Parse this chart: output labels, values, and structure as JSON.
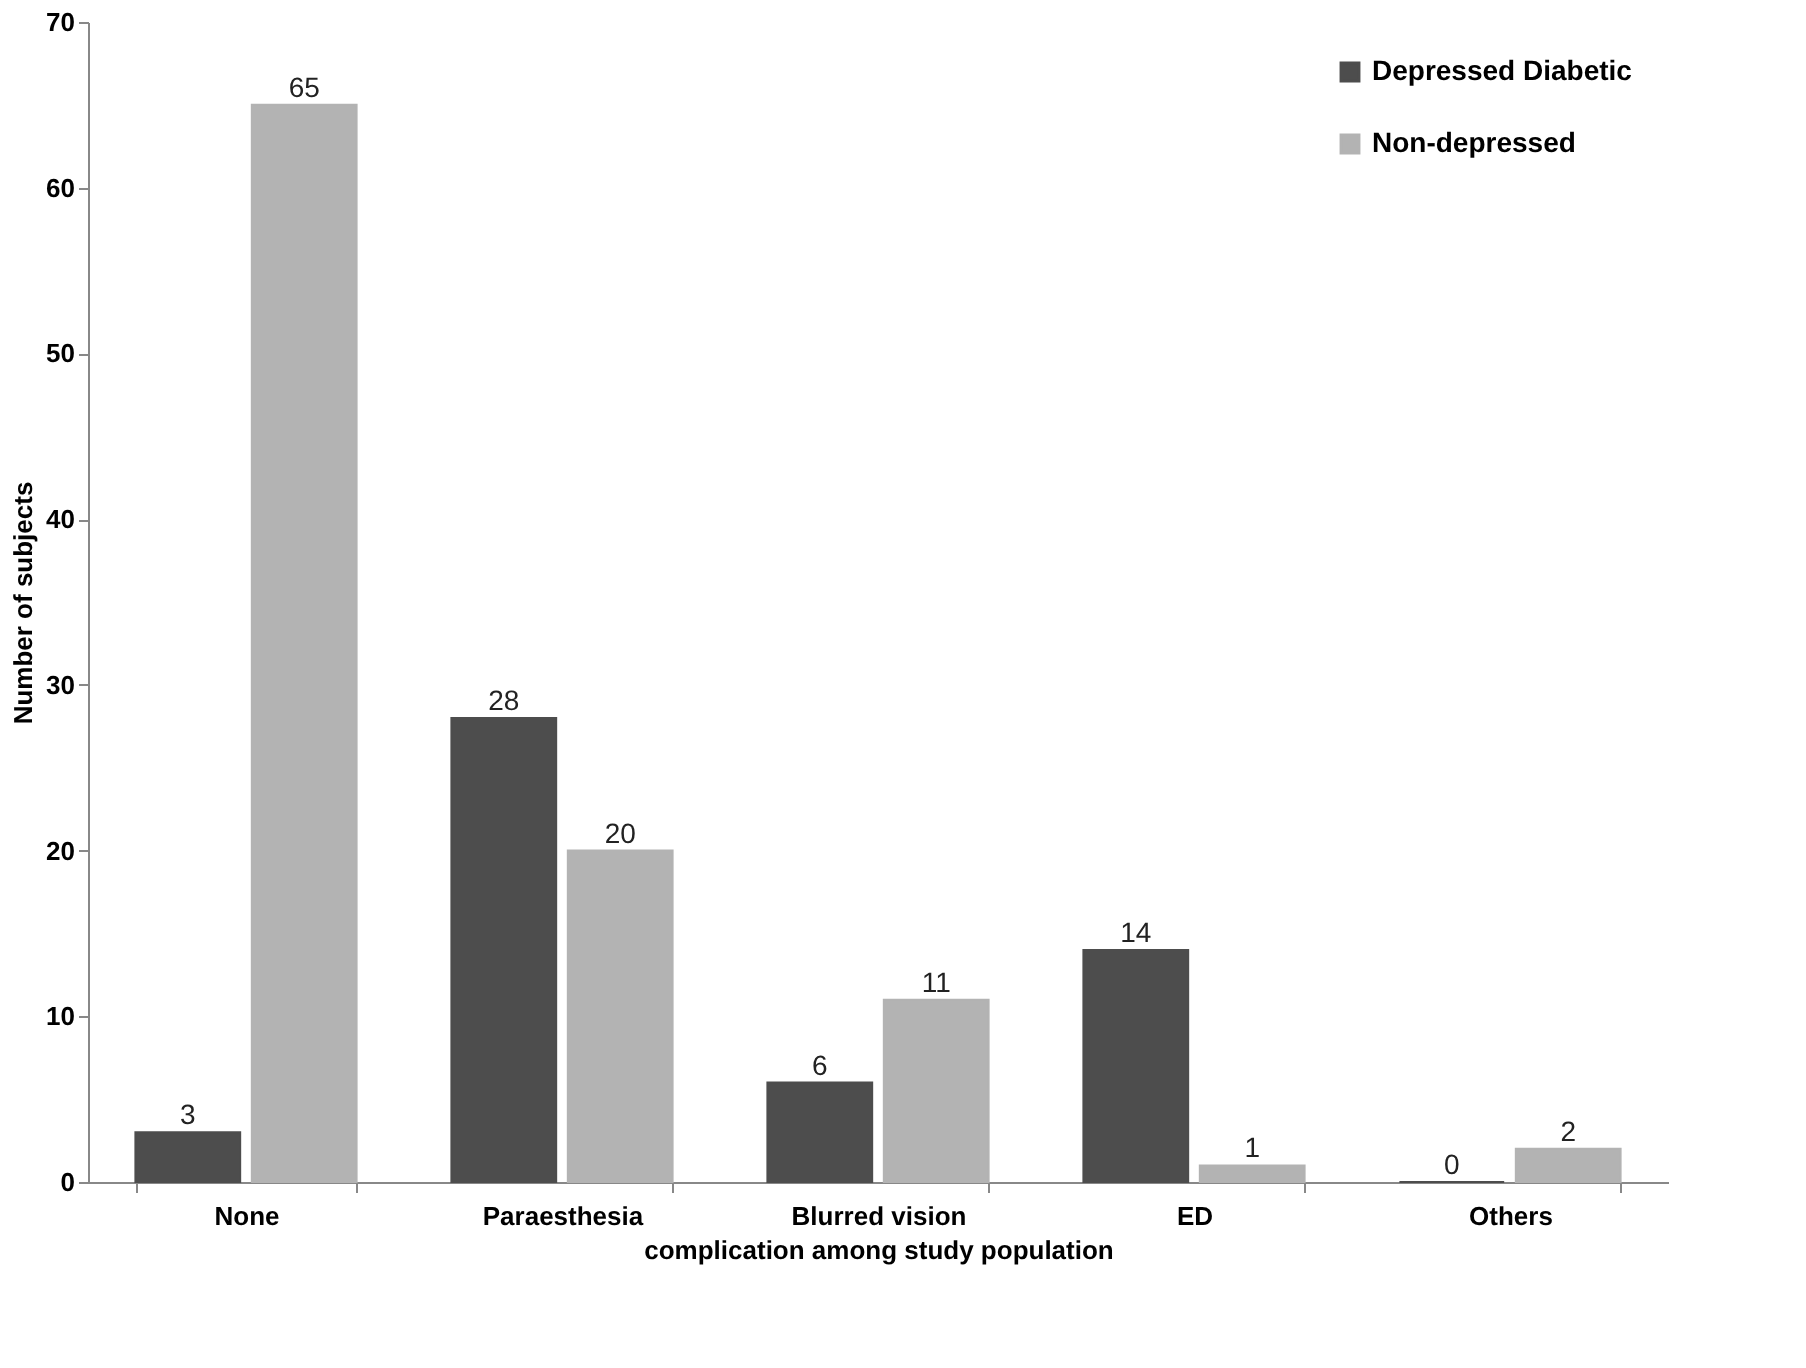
{
  "chart_data": {
    "type": "bar",
    "xlabel": "complication among study population",
    "ylabel": "Number of subjects",
    "categories": [
      "None",
      "Paraesthesia",
      "Blurred vision",
      "ED",
      "Others"
    ],
    "series": [
      {
        "name": "Depressed Diabetic",
        "color": "#4d4d4d",
        "values": [
          3,
          28,
          6,
          14,
          0
        ]
      },
      {
        "name": "Non-depressed",
        "color": "#b3b3b3",
        "values": [
          65,
          20,
          11,
          1,
          2
        ]
      }
    ],
    "ylim": [
      0,
      70
    ],
    "yticks": [
      0,
      10,
      20,
      30,
      40,
      50,
      60,
      70
    ],
    "grid": false,
    "legend": "top right",
    "data_labels": true
  }
}
